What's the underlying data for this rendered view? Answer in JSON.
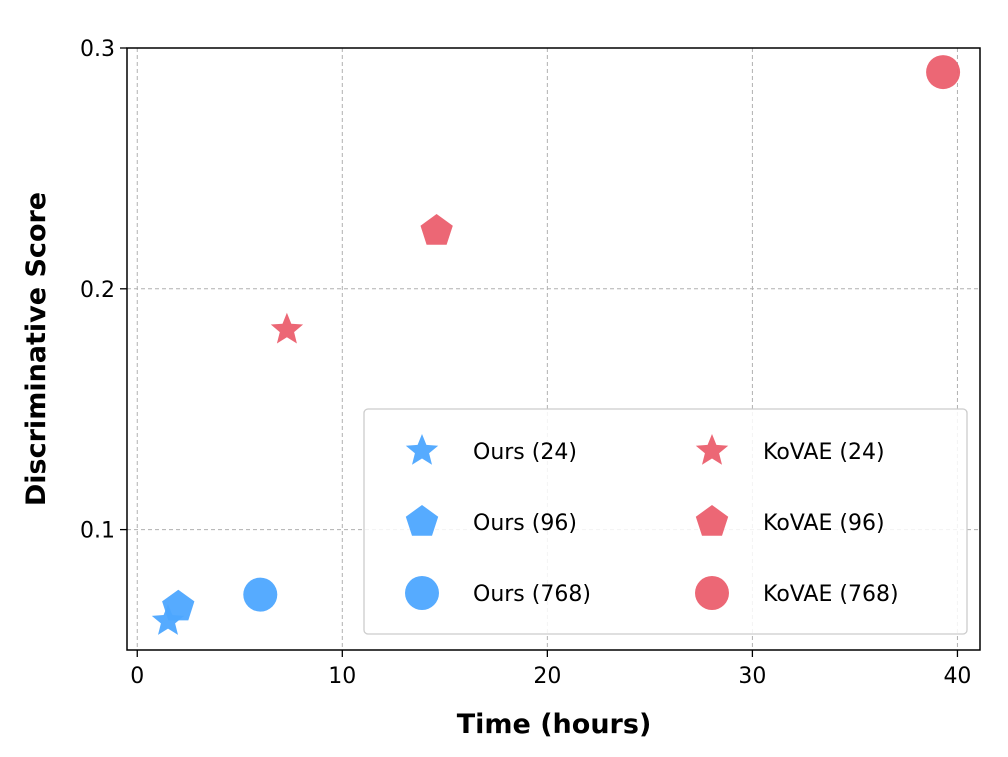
{
  "chart_data": {
    "type": "scatter",
    "title": "",
    "xlabel": "Time (hours)",
    "ylabel": "Discriminative Score",
    "xlim": [
      -0.5,
      41.1
    ],
    "ylim": [
      0.05,
      0.3
    ],
    "xticks": [
      0,
      10,
      20,
      30,
      40
    ],
    "xtick_labels": [
      "0",
      "10",
      "20",
      "30",
      "40"
    ],
    "yticks": [
      0.1,
      0.2,
      0.3
    ],
    "ytick_labels": [
      "0.1",
      "0.2",
      "0.3"
    ],
    "grid": true,
    "legend_placement": "lower-right",
    "colors": {
      "ours": "#4da6ff",
      "kovae": "#eb5f6e"
    },
    "series": [
      {
        "name": "Ours (24)",
        "marker": "star",
        "color": "#4da6ff",
        "x": 1.5,
        "y": 0.062
      },
      {
        "name": "Ours (96)",
        "marker": "pentagon",
        "color": "#4da6ff",
        "x": 2.0,
        "y": 0.068
      },
      {
        "name": "Ours (768)",
        "marker": "circle",
        "color": "#4da6ff",
        "x": 6.0,
        "y": 0.073
      },
      {
        "name": "KoVAE (24)",
        "marker": "star",
        "color": "#eb5f6e",
        "x": 7.3,
        "y": 0.183
      },
      {
        "name": "KoVAE (96)",
        "marker": "pentagon",
        "color": "#eb5f6e",
        "x": 14.6,
        "y": 0.224
      },
      {
        "name": "KoVAE (768)",
        "marker": "circle",
        "color": "#eb5f6e",
        "x": 39.3,
        "y": 0.29
      }
    ]
  }
}
